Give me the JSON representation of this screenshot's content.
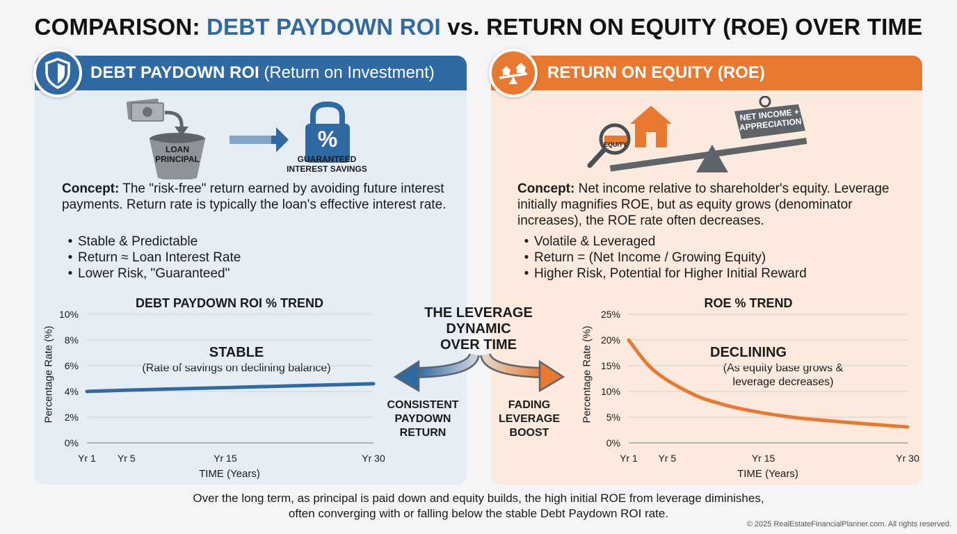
{
  "title": {
    "prefix": "COMPARISON: ",
    "highlight": "DEBT PAYDOWN ROI",
    "suffix": " vs. RETURN ON EQUITY (ROE) OVER TIME"
  },
  "colors": {
    "blue": "#2f6aa3",
    "orange": "#e8792f",
    "left_bg": "#e6edf5",
    "right_bg": "#fbeadd"
  },
  "left": {
    "header_bold": "DEBT PAYDOWN ROI",
    "header_light": " (Return on Investment)",
    "badge_icon": "shield-icon",
    "illus": {
      "bucket_label_1": "LOAN",
      "bucket_label_2": "PRINCIPAL",
      "lock_label_1": "GUARANTEED",
      "lock_label_2": "INTEREST SAVINGS",
      "lock_symbol": "%"
    },
    "concept_label": "Concept:",
    "concept_text": " The \"risk-free\" return earned by avoiding future interest payments. Return rate is typically the loan's effective interest rate.",
    "bullets": [
      "Stable & Predictable",
      "Return ≈ Loan Interest Rate",
      "Lower Risk, \"Guaranteed\""
    ],
    "annotation_main": "STABLE",
    "annotation_sub": "(Rate of savings on declining balance)"
  },
  "right": {
    "header_bold": "RETURN ON EQUITY (ROE)",
    "badge_icon": "seesaw-houses-icon",
    "illus": {
      "equity_label": "EQUITY",
      "sign_label_1": "NET INCOME +",
      "sign_label_2": "APPRECIATION"
    },
    "concept_label": "Concept:",
    "concept_text": " Net income relative to shareholder's equity. Leverage initially magnifies ROE, but as equity grows (denominator increases), the ROE rate often decreases.",
    "bullets": [
      "Volatile & Leveraged",
      "Return = (Net Income / Growing Equity)",
      "Higher Risk, Potential for Higher Initial Reward"
    ],
    "annotation_main": "DECLINING",
    "annotation_sub_1": "(As equity base grows &",
    "annotation_sub_2": "leverage decreases)"
  },
  "center": {
    "title_1": "THE LEVERAGE",
    "title_2": "DYNAMIC",
    "title_3": "OVER TIME",
    "left_1": "CONSISTENT",
    "left_2": "PAYDOWN",
    "left_3": "RETURN",
    "right_1": "FADING",
    "right_2": "LEVERAGE",
    "right_3": "BOOST"
  },
  "footer_1": "Over the long term, as principal is paid down and equity builds, the high initial ROE from leverage diminishes,",
  "footer_2": "often converging with or falling below the stable Debt Paydown ROI rate.",
  "copyright": "© 2025 RealEstateFinancialPlanner.com. All rights reserved.",
  "chart_data": [
    {
      "type": "line",
      "title": "DEBT PAYDOWN ROI % TREND",
      "xlabel": "TIME (Years)",
      "ylabel": "Percentage Rate (%)",
      "x_ticks": [
        1,
        5,
        15,
        30
      ],
      "x_tick_labels": [
        "Yr 1",
        "Yr 5",
        "Yr 15",
        "Yr 30"
      ],
      "xlim": [
        1,
        30
      ],
      "ylim": [
        0,
        10
      ],
      "y_ticks": [
        0,
        2,
        4,
        6,
        8,
        10
      ],
      "y_tick_labels": [
        "0%",
        "2%",
        "4%",
        "6%",
        "8%",
        "10%"
      ],
      "grid": true,
      "color": "#2f6aa3",
      "series": [
        {
          "x": [
            1,
            5,
            10,
            15,
            20,
            25,
            30
          ],
          "values": [
            4.0,
            4.1,
            4.2,
            4.3,
            4.4,
            4.5,
            4.6
          ]
        }
      ]
    },
    {
      "type": "line",
      "title": "ROE % TREND",
      "xlabel": "TIME (Years)",
      "ylabel": "Percentage Rate (%)",
      "x_ticks": [
        1,
        5,
        15,
        30
      ],
      "x_tick_labels": [
        "Yr 1",
        "Yr 5",
        "Yr 15",
        "Yr 30"
      ],
      "xlim": [
        1,
        30
      ],
      "ylim": [
        0,
        25
      ],
      "y_ticks": [
        0,
        5,
        10,
        15,
        20,
        25
      ],
      "y_tick_labels": [
        "0%",
        "5%",
        "10%",
        "15%",
        "20%",
        "25%"
      ],
      "grid": true,
      "color": "#e8792f",
      "series": [
        {
          "x": [
            1,
            3,
            5,
            8,
            10,
            12,
            15,
            18,
            20,
            25,
            30
          ],
          "values": [
            20,
            15.2,
            12.2,
            9.2,
            7.9,
            6.9,
            5.8,
            5.0,
            4.6,
            3.8,
            3.1
          ]
        }
      ]
    }
  ]
}
